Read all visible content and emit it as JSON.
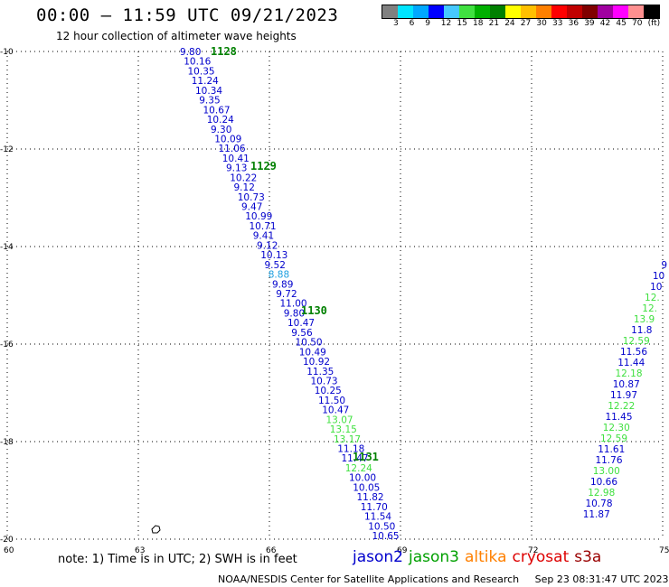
{
  "title": "00:00 – 11:59 UTC 09/21/2023",
  "subtitle": "12 hour collection of altimeter wave heights",
  "legend": {
    "colors": [
      "#808080",
      "#00e5ff",
      "#00a8ff",
      "#0000ff",
      "#46c8ff",
      "#40e040",
      "#00b000",
      "#008000",
      "#ffff00",
      "#ffc000",
      "#ff8000",
      "#ff0000",
      "#c00000",
      "#800000",
      "#a000a0",
      "#ff00ff",
      "#ff9090",
      "#000000"
    ],
    "labels": [
      "3",
      "6",
      "9",
      "12",
      "15",
      "18",
      "21",
      "24",
      "27",
      "30",
      "33",
      "36",
      "39",
      "42",
      "45",
      "70",
      "(ft)"
    ]
  },
  "axes": {
    "lat_labels": [
      "-10",
      "-12",
      "-14",
      "-16",
      "-18",
      "-20"
    ],
    "lon_labels": [
      "60",
      "63",
      "66",
      "69",
      "72",
      "75"
    ]
  },
  "passes": [
    {
      "label": "1128"
    },
    {
      "label": "1129"
    },
    {
      "label": "1130"
    },
    {
      "label": "1131"
    }
  ],
  "track_main": [
    {
      "v": "9.80",
      "c": "#0000cc"
    },
    {
      "v": "10.16",
      "c": "#0000cc"
    },
    {
      "v": "10.35",
      "c": "#0000cc"
    },
    {
      "v": "11.24",
      "c": "#0000cc"
    },
    {
      "v": "10.34",
      "c": "#0000cc"
    },
    {
      "v": "9.35",
      "c": "#0000cc"
    },
    {
      "v": "10.67",
      "c": "#0000cc"
    },
    {
      "v": "10.24",
      "c": "#0000cc"
    },
    {
      "v": "9.30",
      "c": "#0000cc"
    },
    {
      "v": "10.09",
      "c": "#0000cc"
    },
    {
      "v": "11.06",
      "c": "#0000cc"
    },
    {
      "v": "10.41",
      "c": "#0000cc"
    },
    {
      "v": "9.13",
      "c": "#0000cc"
    },
    {
      "v": "10.22",
      "c": "#0000cc"
    },
    {
      "v": "9.12",
      "c": "#0000cc"
    },
    {
      "v": "10.73",
      "c": "#0000cc"
    },
    {
      "v": "9.47",
      "c": "#0000cc"
    },
    {
      "v": "10.99",
      "c": "#0000cc"
    },
    {
      "v": "10.71",
      "c": "#0000cc"
    },
    {
      "v": "9.41",
      "c": "#0000cc"
    },
    {
      "v": "9.12",
      "c": "#0000cc"
    },
    {
      "v": "10.13",
      "c": "#0000cc"
    },
    {
      "v": "9.52",
      "c": "#0000cc"
    },
    {
      "v": "8.88",
      "c": "#1ea0e0"
    },
    {
      "v": "9.89",
      "c": "#0000cc"
    },
    {
      "v": "9.72",
      "c": "#0000cc"
    },
    {
      "v": "11.00",
      "c": "#0000cc"
    },
    {
      "v": "9.80",
      "c": "#0000cc"
    },
    {
      "v": "10.47",
      "c": "#0000cc"
    },
    {
      "v": "9.56",
      "c": "#0000cc"
    },
    {
      "v": "10.50",
      "c": "#0000cc"
    },
    {
      "v": "10.49",
      "c": "#0000cc"
    },
    {
      "v": "10.92",
      "c": "#0000cc"
    },
    {
      "v": "11.35",
      "c": "#0000cc"
    },
    {
      "v": "10.73",
      "c": "#0000cc"
    },
    {
      "v": "10.25",
      "c": "#0000cc"
    },
    {
      "v": "11.50",
      "c": "#0000cc"
    },
    {
      "v": "10.47",
      "c": "#0000cc"
    },
    {
      "v": "13.07",
      "c": "#40e040"
    },
    {
      "v": "13.15",
      "c": "#40e040"
    },
    {
      "v": "13.17",
      "c": "#40e040"
    },
    {
      "v": "11.18",
      "c": "#0000cc"
    },
    {
      "v": "11.47",
      "c": "#0000cc"
    },
    {
      "v": "12.24",
      "c": "#40e040"
    },
    {
      "v": "10.00",
      "c": "#0000cc"
    },
    {
      "v": "10.05",
      "c": "#0000cc"
    },
    {
      "v": "11.82",
      "c": "#0000cc"
    },
    {
      "v": "11.70",
      "c": "#0000cc"
    },
    {
      "v": "11.54",
      "c": "#0000cc"
    },
    {
      "v": "10.50",
      "c": "#0000cc"
    },
    {
      "v": "10.65",
      "c": "#0000cc"
    }
  ],
  "track_right_partial": [
    {
      "v": "9",
      "c": "#0000cc"
    },
    {
      "v": "10",
      "c": "#0000cc"
    },
    {
      "v": "10",
      "c": "#0000cc"
    },
    {
      "v": "12.",
      "c": "#40e040"
    },
    {
      "v": "12.",
      "c": "#40e040"
    },
    {
      "v": "13.9",
      "c": "#40e040"
    },
    {
      "v": "11.8",
      "c": "#0000cc"
    },
    {
      "v": "12.59",
      "c": "#40e040"
    },
    {
      "v": "11.56",
      "c": "#0000cc"
    },
    {
      "v": "11.44",
      "c": "#0000cc"
    },
    {
      "v": "12.18",
      "c": "#40e040"
    },
    {
      "v": "10.87",
      "c": "#0000cc"
    },
    {
      "v": "11.97",
      "c": "#0000cc"
    },
    {
      "v": "12.22",
      "c": "#40e040"
    },
    {
      "v": "11.45",
      "c": "#0000cc"
    },
    {
      "v": "12.30",
      "c": "#40e040"
    },
    {
      "v": "12.59",
      "c": "#40e040"
    },
    {
      "v": "11.61",
      "c": "#0000cc"
    },
    {
      "v": "11.76",
      "c": "#0000cc"
    },
    {
      "v": "13.00",
      "c": "#40e040"
    },
    {
      "v": "10.66",
      "c": "#0000cc"
    },
    {
      "v": "12.98",
      "c": "#40e040"
    },
    {
      "v": "10.78",
      "c": "#0000cc"
    },
    {
      "v": "11.87",
      "c": "#0000cc"
    }
  ],
  "note": "note:  1) Time is in UTC;  2) SWH is in feet",
  "satellites": [
    {
      "name": "jason2",
      "color": "#0000cc"
    },
    {
      "name": "jason3",
      "color": "#00a000"
    },
    {
      "name": "altika",
      "color": "#ff8000"
    },
    {
      "name": "cryosat",
      "color": "#dd0000"
    },
    {
      "name": "s3a",
      "color": "#990000"
    }
  ],
  "footer": {
    "org": "NOAA/NESDIS Center for Satellite Applications and Research",
    "timestamp": "Sep 23 08:31:47 UTC 2023"
  }
}
